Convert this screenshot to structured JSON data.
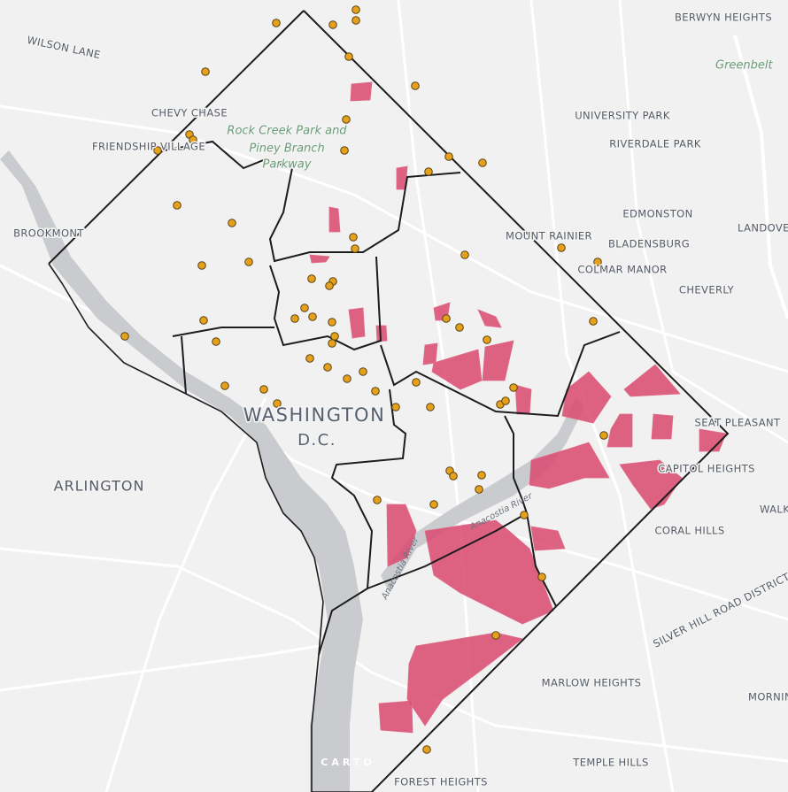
{
  "map": {
    "title_lines": [
      "WASHINGTON",
      "D.C."
    ],
    "places": [
      "WILSON LANE",
      "CHEVY CHASE",
      "FRIENDSHIP VILLAGE",
      "BROOKMONT",
      "BERWYN HEIGHTS",
      "UNIVERSITY PARK",
      "RIVERDALE PARK",
      "EDMONSTON",
      "MOUNT RAINIER",
      "BLADENSBURG",
      "COLMAR MANOR",
      "CHEVERLY",
      "LANDOVER",
      "SEAT PLEASANT",
      "CAPITOL HEIGHTS",
      "CORAL HILLS",
      "MARLOW HEIGHTS",
      "TEMPLE HILLS",
      "FOREST HEIGHTS",
      "ARLINGTON",
      "SILVER HILL ROAD DISTRICT",
      "WALKER",
      "MORNING"
    ],
    "parks": [
      "Rock Creek Park and",
      "Piney Branch",
      "Parkway",
      "Greenbelt"
    ],
    "rivers": [
      "Anacostia River",
      "Anacostia River"
    ],
    "attribution": "CARTO"
  }
}
